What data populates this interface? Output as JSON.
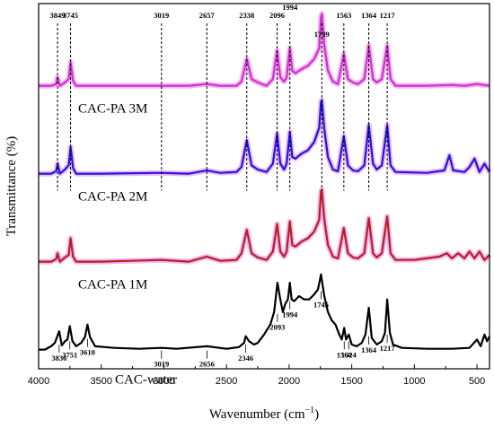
{
  "chart_data": {
    "type": "line",
    "xlabel": "Wavenumber (cm",
    "xlabel_sup": "−1",
    "xlabel_close": ")",
    "ylabel": "Transmittance (%)",
    "xlim": [
      4000,
      400
    ],
    "x_reversed": true,
    "x_ticks": [
      4000,
      3500,
      3000,
      2500,
      2000,
      1500,
      1000,
      500
    ],
    "y_ticks": [],
    "colors": {
      "CAC-PA 3M": "#cc33cc",
      "CAC-PA 2M": "#1a1adb",
      "CAC-PA 1M": "#b52020",
      "CAC-water": "#000000",
      "highlight": "#f3b6f3"
    },
    "series": [
      {
        "name": "CAC-PA 3M",
        "offset": 3.0,
        "points": [
          [
            4000,
            0.9
          ],
          [
            3900,
            0.9
          ],
          [
            3860,
            0.88
          ],
          [
            3849,
            0.8
          ],
          [
            3830,
            0.9
          ],
          [
            3790,
            0.86
          ],
          [
            3760,
            0.82
          ],
          [
            3745,
            0.62
          ],
          [
            3725,
            0.84
          ],
          [
            3700,
            0.9
          ],
          [
            3500,
            0.9
          ],
          [
            3019,
            0.9
          ],
          [
            2800,
            0.9
          ],
          [
            2657,
            0.88
          ],
          [
            2550,
            0.9
          ],
          [
            2420,
            0.9
          ],
          [
            2380,
            0.85
          ],
          [
            2338,
            0.58
          ],
          [
            2300,
            0.82
          ],
          [
            2250,
            0.86
          ],
          [
            2180,
            0.9
          ],
          [
            2130,
            0.82
          ],
          [
            2096,
            0.48
          ],
          [
            2070,
            0.8
          ],
          [
            2040,
            0.85
          ],
          [
            2020,
            0.8
          ],
          [
            1994,
            0.45
          ],
          [
            1975,
            0.72
          ],
          [
            1950,
            0.75
          ],
          [
            1900,
            0.7
          ],
          [
            1850,
            0.66
          ],
          [
            1800,
            0.58
          ],
          [
            1760,
            0.45
          ],
          [
            1745,
            0.08
          ],
          [
            1739,
            0.04
          ],
          [
            1720,
            0.4
          ],
          [
            1690,
            0.72
          ],
          [
            1650,
            0.85
          ],
          [
            1610,
            0.88
          ],
          [
            1563,
            0.52
          ],
          [
            1530,
            0.82
          ],
          [
            1490,
            0.86
          ],
          [
            1450,
            0.88
          ],
          [
            1400,
            0.82
          ],
          [
            1364,
            0.42
          ],
          [
            1330,
            0.82
          ],
          [
            1300,
            0.86
          ],
          [
            1260,
            0.82
          ],
          [
            1217,
            0.42
          ],
          [
            1190,
            0.82
          ],
          [
            1150,
            0.9
          ],
          [
            900,
            0.9
          ],
          [
            700,
            0.89
          ],
          [
            600,
            0.9
          ],
          [
            500,
            0.88
          ],
          [
            400,
            0.9
          ]
        ]
      },
      {
        "name": "CAC-PA 2M",
        "offset": 2.0,
        "points": [
          [
            4000,
            0.9
          ],
          [
            3900,
            0.9
          ],
          [
            3860,
            0.87
          ],
          [
            3849,
            0.78
          ],
          [
            3830,
            0.9
          ],
          [
            3790,
            0.85
          ],
          [
            3760,
            0.8
          ],
          [
            3745,
            0.58
          ],
          [
            3725,
            0.83
          ],
          [
            3700,
            0.9
          ],
          [
            3500,
            0.9
          ],
          [
            3019,
            0.89
          ],
          [
            2800,
            0.9
          ],
          [
            2657,
            0.86
          ],
          [
            2550,
            0.89
          ],
          [
            2420,
            0.88
          ],
          [
            2380,
            0.82
          ],
          [
            2338,
            0.5
          ],
          [
            2300,
            0.8
          ],
          [
            2250,
            0.85
          ],
          [
            2180,
            0.88
          ],
          [
            2130,
            0.78
          ],
          [
            2096,
            0.42
          ],
          [
            2070,
            0.78
          ],
          [
            2040,
            0.85
          ],
          [
            2020,
            0.78
          ],
          [
            1994,
            0.4
          ],
          [
            1975,
            0.7
          ],
          [
            1950,
            0.72
          ],
          [
            1900,
            0.66
          ],
          [
            1850,
            0.62
          ],
          [
            1800,
            0.52
          ],
          [
            1760,
            0.35
          ],
          [
            1745,
            0.04
          ],
          [
            1739,
            0.02
          ],
          [
            1720,
            0.35
          ],
          [
            1690,
            0.7
          ],
          [
            1650,
            0.85
          ],
          [
            1610,
            0.87
          ],
          [
            1563,
            0.45
          ],
          [
            1530,
            0.8
          ],
          [
            1490,
            0.86
          ],
          [
            1450,
            0.87
          ],
          [
            1400,
            0.8
          ],
          [
            1364,
            0.32
          ],
          [
            1330,
            0.78
          ],
          [
            1300,
            0.85
          ],
          [
            1260,
            0.8
          ],
          [
            1217,
            0.32
          ],
          [
            1190,
            0.8
          ],
          [
            1150,
            0.88
          ],
          [
            900,
            0.89
          ],
          [
            760,
            0.86
          ],
          [
            720,
            0.68
          ],
          [
            690,
            0.86
          ],
          [
            600,
            0.88
          ],
          [
            560,
            0.82
          ],
          [
            520,
            0.72
          ],
          [
            480,
            0.88
          ],
          [
            440,
            0.78
          ],
          [
            400,
            0.88
          ]
        ]
      },
      {
        "name": "CAC-PA 1M",
        "offset": 1.0,
        "points": [
          [
            4000,
            0.9
          ],
          [
            3900,
            0.9
          ],
          [
            3860,
            0.87
          ],
          [
            3849,
            0.8
          ],
          [
            3830,
            0.9
          ],
          [
            3790,
            0.85
          ],
          [
            3760,
            0.82
          ],
          [
            3745,
            0.62
          ],
          [
            3725,
            0.84
          ],
          [
            3700,
            0.9
          ],
          [
            3500,
            0.9
          ],
          [
            3019,
            0.88
          ],
          [
            2800,
            0.9
          ],
          [
            2657,
            0.84
          ],
          [
            2550,
            0.89
          ],
          [
            2420,
            0.88
          ],
          [
            2380,
            0.8
          ],
          [
            2338,
            0.52
          ],
          [
            2300,
            0.8
          ],
          [
            2250,
            0.85
          ],
          [
            2180,
            0.88
          ],
          [
            2130,
            0.78
          ],
          [
            2096,
            0.45
          ],
          [
            2070,
            0.78
          ],
          [
            2040,
            0.84
          ],
          [
            2020,
            0.78
          ],
          [
            1994,
            0.42
          ],
          [
            1975,
            0.7
          ],
          [
            1950,
            0.72
          ],
          [
            1900,
            0.66
          ],
          [
            1850,
            0.62
          ],
          [
            1800,
            0.54
          ],
          [
            1760,
            0.4
          ],
          [
            1745,
            0.06
          ],
          [
            1739,
            0.04
          ],
          [
            1720,
            0.38
          ],
          [
            1690,
            0.7
          ],
          [
            1650,
            0.84
          ],
          [
            1610,
            0.86
          ],
          [
            1563,
            0.5
          ],
          [
            1530,
            0.8
          ],
          [
            1490,
            0.85
          ],
          [
            1450,
            0.86
          ],
          [
            1400,
            0.8
          ],
          [
            1364,
            0.38
          ],
          [
            1330,
            0.8
          ],
          [
            1300,
            0.85
          ],
          [
            1260,
            0.8
          ],
          [
            1217,
            0.36
          ],
          [
            1190,
            0.8
          ],
          [
            1150,
            0.88
          ],
          [
            1000,
            0.88
          ],
          [
            900,
            0.86
          ],
          [
            800,
            0.84
          ],
          [
            740,
            0.8
          ],
          [
            700,
            0.86
          ],
          [
            650,
            0.8
          ],
          [
            600,
            0.86
          ],
          [
            560,
            0.78
          ],
          [
            520,
            0.86
          ],
          [
            480,
            0.78
          ],
          [
            440,
            0.88
          ],
          [
            400,
            0.82
          ]
        ]
      },
      {
        "name": "CAC-water",
        "offset": 0.0,
        "points": [
          [
            4000,
            0.9
          ],
          [
            3950,
            0.9
          ],
          [
            3900,
            0.86
          ],
          [
            3870,
            0.82
          ],
          [
            3836,
            0.68
          ],
          [
            3815,
            0.85
          ],
          [
            3790,
            0.8
          ],
          [
            3770,
            0.78
          ],
          [
            3751,
            0.62
          ],
          [
            3730,
            0.8
          ],
          [
            3700,
            0.86
          ],
          [
            3660,
            0.82
          ],
          [
            3630,
            0.75
          ],
          [
            3610,
            0.6
          ],
          [
            3590,
            0.75
          ],
          [
            3550,
            0.86
          ],
          [
            3400,
            0.88
          ],
          [
            3200,
            0.89
          ],
          [
            3019,
            0.88
          ],
          [
            2900,
            0.89
          ],
          [
            2656,
            0.86
          ],
          [
            2500,
            0.89
          ],
          [
            2400,
            0.87
          ],
          [
            2360,
            0.82
          ],
          [
            2346,
            0.74
          ],
          [
            2320,
            0.8
          ],
          [
            2280,
            0.84
          ],
          [
            2250,
            0.82
          ],
          [
            2200,
            0.72
          ],
          [
            2150,
            0.6
          ],
          [
            2120,
            0.45
          ],
          [
            2093,
            0.1
          ],
          [
            2070,
            0.3
          ],
          [
            2050,
            0.45
          ],
          [
            2030,
            0.35
          ],
          [
            2010,
            0.3
          ],
          [
            1994,
            0.1
          ],
          [
            1980,
            0.3
          ],
          [
            1960,
            0.32
          ],
          [
            1920,
            0.26
          ],
          [
            1880,
            0.3
          ],
          [
            1840,
            0.3
          ],
          [
            1800,
            0.24
          ],
          [
            1770,
            0.18
          ],
          [
            1745,
            0.0
          ],
          [
            1720,
            0.25
          ],
          [
            1690,
            0.45
          ],
          [
            1660,
            0.55
          ],
          [
            1630,
            0.6
          ],
          [
            1600,
            0.72
          ],
          [
            1580,
            0.78
          ],
          [
            1560,
            0.64
          ],
          [
            1545,
            0.78
          ],
          [
            1524,
            0.72
          ],
          [
            1500,
            0.84
          ],
          [
            1460,
            0.86
          ],
          [
            1420,
            0.82
          ],
          [
            1390,
            0.72
          ],
          [
            1364,
            0.4
          ],
          [
            1340,
            0.76
          ],
          [
            1300,
            0.84
          ],
          [
            1260,
            0.8
          ],
          [
            1235,
            0.7
          ],
          [
            1217,
            0.3
          ],
          [
            1195,
            0.7
          ],
          [
            1170,
            0.84
          ],
          [
            1100,
            0.88
          ],
          [
            900,
            0.89
          ],
          [
            700,
            0.89
          ],
          [
            560,
            0.88
          ],
          [
            500,
            0.78
          ],
          [
            470,
            0.86
          ],
          [
            440,
            0.72
          ],
          [
            420,
            0.8
          ],
          [
            400,
            0.74
          ]
        ]
      }
    ],
    "series_labels": [
      {
        "text": "CAC-PA 3M",
        "series": 0
      },
      {
        "text": "CAC-PA 2M",
        "series": 1
      },
      {
        "text": "CAC-PA 1M",
        "series": 2
      },
      {
        "text": "CAC-water",
        "series": 3
      }
    ],
    "top_annotations": [
      {
        "label": "3849",
        "x": 3849
      },
      {
        "label": "3745",
        "x": 3745
      },
      {
        "label": "3019",
        "x": 3019
      },
      {
        "label": "2657",
        "x": 2657
      },
      {
        "label": "2338",
        "x": 2338
      },
      {
        "label": "2096",
        "x": 2096
      },
      {
        "label": "1994",
        "x": 1994
      },
      {
        "label": "1739",
        "x": 1739
      },
      {
        "label": "1563",
        "x": 1563
      },
      {
        "label": "1364",
        "x": 1364
      },
      {
        "label": "1217",
        "x": 1217
      }
    ],
    "bottom_annotations": [
      {
        "label": "3836",
        "x": 3836
      },
      {
        "label": "3751",
        "x": 3751
      },
      {
        "label": "3610",
        "x": 3610
      },
      {
        "label": "3019",
        "x": 3019
      },
      {
        "label": "2656",
        "x": 2656
      },
      {
        "label": "2346",
        "x": 2346
      },
      {
        "label": "2093",
        "x": 2093
      },
      {
        "label": "1994",
        "x": 1994
      },
      {
        "label": "1745",
        "x": 1745
      },
      {
        "label": "1560",
        "x": 1560
      },
      {
        "label": "1524",
        "x": 1524
      },
      {
        "label": "1364",
        "x": 1364
      },
      {
        "label": "1217",
        "x": 1217
      }
    ],
    "grid": false,
    "legend": "none"
  }
}
